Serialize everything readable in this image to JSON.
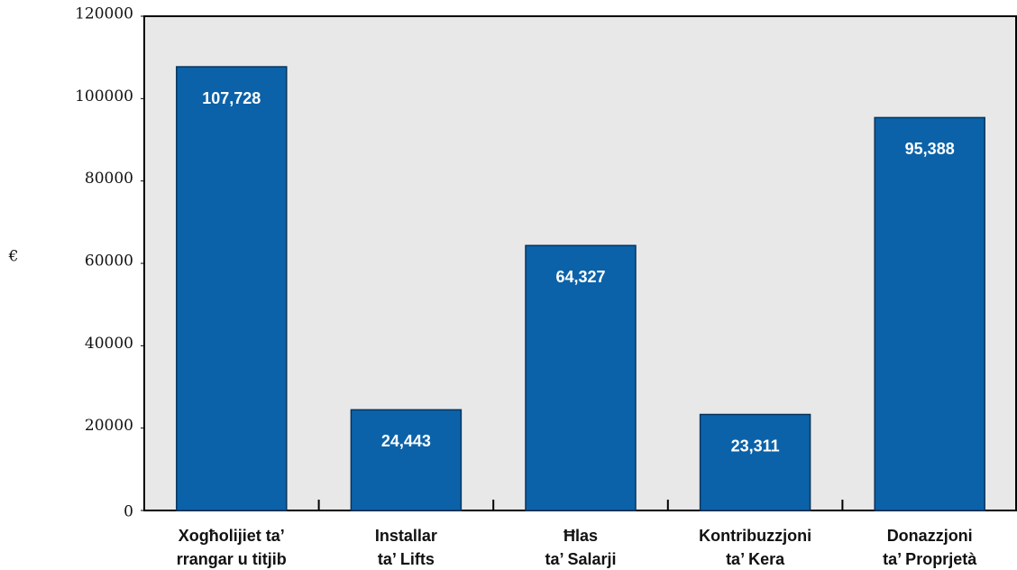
{
  "chart_data": {
    "type": "bar",
    "y_label": "€",
    "categories": [
      [
        "Xogħolijiet ta’",
        "rrangar u titjib"
      ],
      [
        "Installar",
        "ta’ Lifts"
      ],
      [
        "Ħlas",
        "ta’ Salarji"
      ],
      [
        "Kontribuzzjoni",
        "ta’ Kera"
      ],
      [
        "Donazzjoni",
        "ta’ Proprjetà"
      ]
    ],
    "values": [
      107728,
      24443,
      64327,
      23311,
      95388
    ],
    "value_labels": [
      "107,728",
      "24,443",
      "64,327",
      "23,311",
      "95,388"
    ],
    "color": "#0b62a8",
    "ylim": [
      0,
      120000
    ],
    "yticks": [
      0,
      20000,
      40000,
      60000,
      80000,
      100000,
      120000
    ],
    "grid": false
  }
}
